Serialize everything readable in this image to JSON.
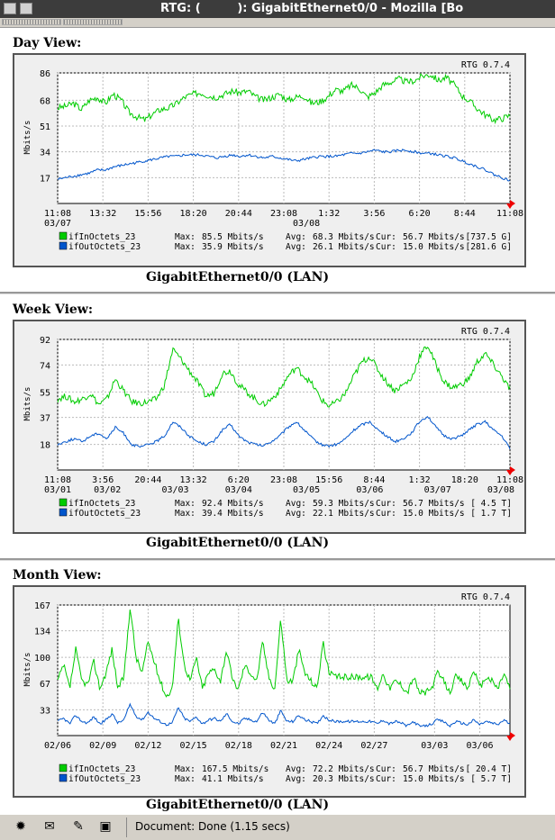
{
  "window": {
    "title": "RTG: (         ): GigabitEthernet0/0 - Mozilla [Bo"
  },
  "status": {
    "text": "Document: Done (1.15 secs)"
  },
  "views": [
    {
      "heading": "Day View:",
      "caption": "GigabitEthernet0/0 (LAN)",
      "chart_data": {
        "type": "line",
        "watermark": "RTG 0.7.4",
        "ylabel": "Mbits/s",
        "ylim": [
          0,
          86
        ],
        "yticks": [
          17,
          34,
          51,
          68,
          86
        ],
        "xticks": [
          "11:08",
          "13:32",
          "15:56",
          "18:20",
          "20:44",
          "23:08",
          "1:32",
          "3:56",
          "6:20",
          "8:44",
          "11:08"
        ],
        "xdates": [
          {
            "at": 0,
            "label": "03/07"
          },
          {
            "at": 5.5,
            "label": "03/08"
          }
        ],
        "series": [
          {
            "name": "ifInOctets_23",
            "color": "#00cc00",
            "max": "85.5 Mbits/s",
            "avg": "68.3 Mbits/s",
            "cur": "56.7 Mbits/s",
            "total": "[737.5 G]",
            "values": [
              63,
              64,
              66,
              62,
              68,
              70,
              66,
              72,
              68,
              60,
              57,
              55,
              59,
              62,
              63,
              66,
              70,
              72,
              73,
              71,
              70,
              72,
              74,
              73,
              74,
              70,
              68,
              70,
              72,
              68,
              70,
              71,
              66,
              67,
              70,
              75,
              74,
              78,
              76,
              70,
              73,
              78,
              80,
              82,
              80,
              81,
              84,
              85,
              81,
              83,
              78,
              71,
              67,
              62,
              58,
              55,
              56,
              58
            ]
          },
          {
            "name": "ifOutOctets_23",
            "color": "#0055cc",
            "max": "35.9 Mbits/s",
            "avg": "26.1 Mbits/s",
            "cur": "15.0 Mbits/s",
            "total": "[281.6 G]",
            "values": [
              16,
              17,
              18,
              19,
              20,
              22,
              22,
              24,
              25,
              26,
              27,
              28,
              29,
              30,
              31,
              31,
              32,
              32,
              32,
              31,
              30,
              31,
              32,
              31,
              32,
              31,
              30,
              31,
              30,
              29,
              28,
              29,
              30,
              31,
              31,
              31,
              32,
              33,
              33,
              34,
              35,
              34,
              34,
              35,
              35,
              34,
              33,
              33,
              32,
              31,
              30,
              28,
              26,
              24,
              22,
              19,
              17,
              15
            ]
          }
        ]
      }
    },
    {
      "heading": "Week View:",
      "caption": "GigabitEthernet0/0 (LAN)",
      "chart_data": {
        "type": "line",
        "watermark": "RTG 0.7.4",
        "ylabel": "Mbits/s",
        "ylim": [
          0,
          92
        ],
        "yticks": [
          18,
          37,
          55,
          74,
          92
        ],
        "xticks": [
          "11:08",
          "3:56",
          "20:44",
          "13:32",
          "6:20",
          "23:08",
          "15:56",
          "8:44",
          "1:32",
          "18:20",
          "11:08"
        ],
        "xdates": [
          {
            "at": 0,
            "label": "03/01"
          },
          {
            "at": 1.1,
            "label": "03/02"
          },
          {
            "at": 2.6,
            "label": "03/03"
          },
          {
            "at": 4,
            "label": "03/04"
          },
          {
            "at": 5.5,
            "label": "03/05"
          },
          {
            "at": 6.9,
            "label": "03/06"
          },
          {
            "at": 8.4,
            "label": "03/07"
          },
          {
            "at": 9.8,
            "label": "03/08"
          }
        ],
        "series": [
          {
            "name": "ifInOctets_23",
            "color": "#00cc00",
            "max": "92.4 Mbits/s",
            "avg": "59.3 Mbits/s",
            "cur": "56.7 Mbits/s",
            "total": "[   4.5 T]",
            "values": [
              50,
              52,
              48,
              50,
              54,
              46,
              50,
              64,
              56,
              48,
              47,
              48,
              50,
              60,
              85,
              78,
              70,
              62,
              52,
              54,
              68,
              70,
              60,
              55,
              50,
              46,
              50,
              56,
              66,
              72,
              66,
              60,
              50,
              45,
              48,
              54,
              66,
              76,
              80,
              70,
              62,
              56,
              60,
              64,
              80,
              88,
              74,
              62,
              58,
              60,
              64,
              76,
              82,
              74,
              66,
              57
            ]
          },
          {
            "name": "ifOutOctets_23",
            "color": "#0055cc",
            "max": "39.4 Mbits/s",
            "avg": "22.1 Mbits/s",
            "cur": "15.0 Mbits/s",
            "total": "[   1.7 T]",
            "values": [
              18,
              20,
              22,
              20,
              24,
              26,
              22,
              30,
              26,
              18,
              16,
              18,
              20,
              24,
              34,
              30,
              24,
              20,
              18,
              20,
              28,
              32,
              24,
              20,
              18,
              17,
              20,
              24,
              30,
              34,
              28,
              22,
              18,
              17,
              18,
              22,
              28,
              32,
              34,
              28,
              24,
              20,
              22,
              26,
              34,
              38,
              30,
              24,
              22,
              24,
              28,
              32,
              34,
              28,
              24,
              15
            ]
          }
        ]
      }
    },
    {
      "heading": "Month View:",
      "caption": "GigabitEthernet0/0 (LAN)",
      "chart_data": {
        "type": "line",
        "watermark": "RTG 0.7.4",
        "ylabel": "Mbits/s",
        "ylim": [
          0,
          167
        ],
        "yticks": [
          33,
          67,
          100,
          134,
          167
        ],
        "xticks": [
          "02/06",
          "02/09",
          "02/12",
          "02/15",
          "02/18",
          "02/21",
          "02/24",
          "02/27",
          "03/03",
          "03/06"
        ],
        "xtick_positions": [
          0,
          3,
          6,
          9,
          12,
          15,
          18,
          21,
          25,
          28
        ],
        "xrange": [
          0,
          30
        ],
        "xdates": [],
        "series": [
          {
            "name": "ifInOctets_23",
            "color": "#00cc00",
            "max": "167.5 Mbits/s",
            "avg": "72.2 Mbits/s",
            "cur": "56.7 Mbits/s",
            "total": "[ 20.4 T]",
            "values": [
              70,
              90,
              60,
              110,
              70,
              65,
              95,
              60,
              80,
              110,
              60,
              75,
              165,
              100,
              80,
              120,
              95,
              70,
              50,
              60,
              150,
              90,
              70,
              100,
              60,
              80,
              85,
              70,
              110,
              70,
              60,
              90,
              80,
              70,
              120,
              75,
              60,
              150,
              70,
              70,
              110,
              80,
              70,
              60,
              120,
              80,
              75,
              75,
              75,
              75,
              75,
              75,
              75,
              60,
              80,
              60,
              70,
              65,
              55,
              75,
              55,
              55,
              60,
              80,
              70,
              55,
              75,
              70,
              60,
              85,
              60,
              75,
              70,
              60,
              80,
              60
            ]
          },
          {
            "name": "ifOutOctets_23",
            "color": "#0055cc",
            "max": "41.1 Mbits/s",
            "avg": "20.3 Mbits/s",
            "cur": "15.0 Mbits/s",
            "total": "[   5.7 T]",
            "values": [
              18,
              22,
              15,
              26,
              18,
              16,
              24,
              15,
              20,
              28,
              16,
              20,
              40,
              25,
              20,
              30,
              22,
              18,
              14,
              16,
              36,
              22,
              18,
              24,
              15,
              20,
              22,
              18,
              28,
              18,
              15,
              22,
              20,
              18,
              30,
              20,
              15,
              32,
              18,
              18,
              26,
              20,
              18,
              15,
              26,
              20,
              18,
              18,
              18,
              18,
              18,
              18,
              18,
              15,
              20,
              15,
              18,
              16,
              12,
              18,
              12,
              12,
              15,
              20,
              18,
              12,
              18,
              16,
              14,
              20,
              14,
              18,
              16,
              14,
              20,
              15
            ]
          }
        ]
      }
    }
  ],
  "legend_labels": {
    "max": "Max:",
    "avg": "Avg:",
    "cur": "Cur:"
  }
}
